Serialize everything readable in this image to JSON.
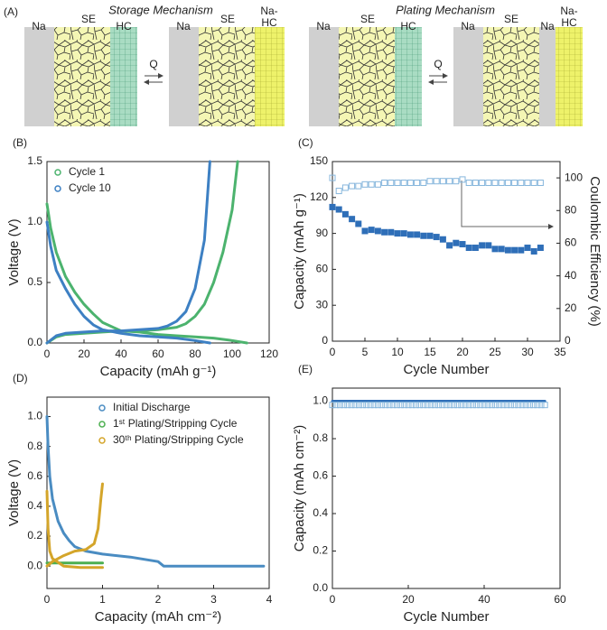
{
  "schematic": {
    "panel_label": "(A)",
    "mechanisms": [
      {
        "title": "Storage Mechanism",
        "arrow_label": "Q",
        "left": [
          "Na",
          "SE",
          "HC"
        ],
        "right": [
          "Na",
          "SE",
          "Na-HC"
        ]
      },
      {
        "title": "Plating Mechanism",
        "arrow_label": "Q",
        "left": [
          "Na",
          "SE",
          "HC"
        ],
        "right": [
          "Na",
          "SE",
          "Na",
          "Na-HC"
        ]
      }
    ]
  },
  "chart_data": [
    {
      "type": "line",
      "panel_label": "(B)",
      "x_label": "Capacity (mAh g⁻¹)",
      "y_label": "Voltage (V)",
      "xlim": [
        0,
        120
      ],
      "xticks": [
        0,
        20,
        40,
        60,
        80,
        100,
        120
      ],
      "ylim": [
        0,
        1.5
      ],
      "yticks": [
        {
          "value": 0,
          "label": "0.0"
        },
        0.5,
        {
          "value": 1,
          "label": "1.0"
        },
        1.5
      ],
      "legend": "upper left",
      "series": [
        {
          "name": "Cycle 1",
          "color": "#4cb36e",
          "x": [
            0,
            2,
            5,
            10,
            15,
            20,
            25,
            30,
            40,
            50,
            60,
            70,
            80,
            90,
            100,
            108,
            null,
            0,
            5,
            10,
            20,
            30,
            40,
            50,
            60,
            70,
            75,
            80,
            85,
            90,
            95,
            100,
            103
          ],
          "values": [
            1.15,
            0.95,
            0.75,
            0.55,
            0.42,
            0.32,
            0.24,
            0.17,
            0.1,
            0.09,
            0.07,
            0.06,
            0.05,
            0.04,
            0.02,
            0,
            null,
            0,
            0.05,
            0.07,
            0.08,
            0.09,
            0.1,
            0.1,
            0.11,
            0.13,
            0.16,
            0.22,
            0.32,
            0.5,
            0.75,
            1.1,
            1.5
          ]
        },
        {
          "name": "Cycle 10",
          "color": "#3d80c3",
          "x": [
            0,
            2,
            5,
            10,
            15,
            20,
            25,
            30,
            40,
            50,
            60,
            70,
            80,
            88,
            null,
            0,
            5,
            10,
            20,
            30,
            40,
            50,
            60,
            65,
            70,
            75,
            80,
            85,
            88
          ],
          "values": [
            1.0,
            0.8,
            0.6,
            0.45,
            0.32,
            0.22,
            0.15,
            0.11,
            0.08,
            0.06,
            0.05,
            0.04,
            0.02,
            0,
            null,
            0,
            0.06,
            0.08,
            0.09,
            0.1,
            0.1,
            0.11,
            0.12,
            0.14,
            0.18,
            0.26,
            0.45,
            0.85,
            1.5
          ]
        }
      ]
    },
    {
      "type": "scatter",
      "panel_label": "(C)",
      "x_label": "Cycle Number",
      "y_label": "Capacity (mAh g⁻¹)",
      "y2_label": "Coulombic Efficiency (%)",
      "xlim": [
        0,
        35
      ],
      "xticks": [
        0,
        5,
        10,
        15,
        20,
        25,
        30,
        35
      ],
      "ylim": [
        0,
        150
      ],
      "yticks": [
        0,
        30,
        60,
        90,
        120,
        150
      ],
      "y2lim": [
        0,
        110
      ],
      "y2ticks": [
        0,
        20,
        40,
        60,
        80,
        100
      ],
      "x": [
        0,
        1,
        2,
        3,
        4,
        5,
        6,
        7,
        8,
        9,
        10,
        11,
        12,
        13,
        14,
        15,
        16,
        17,
        18,
        19,
        20,
        21,
        22,
        23,
        24,
        25,
        26,
        27,
        28,
        29,
        30,
        31,
        32
      ],
      "series": [
        {
          "color": "#2f6fb8",
          "marker": "square-filled",
          "values": [
            112,
            110,
            106,
            102,
            98,
            92,
            93,
            92,
            91,
            91,
            90,
            90,
            89,
            89,
            88,
            88,
            87,
            85,
            80,
            82,
            81,
            78,
            78,
            80,
            80,
            77,
            77,
            76,
            76,
            76,
            78,
            75,
            78
          ]
        },
        {
          "color": "#86b6dc",
          "marker": "square-open",
          "axis": "y2",
          "values": [
            100,
            92,
            94,
            95,
            95,
            96,
            96,
            96,
            97,
            97,
            97,
            97,
            97,
            97,
            97,
            98,
            98,
            98,
            98,
            98,
            99,
            97,
            97,
            97,
            97,
            97,
            97,
            97,
            97,
            97,
            97,
            97,
            97
          ]
        }
      ]
    },
    {
      "type": "line",
      "panel_label": "(D)",
      "x_label": "Capacity (mAh cm⁻²)",
      "y_label": "Voltage (V)",
      "xlim": [
        0,
        4
      ],
      "xticks": [
        0,
        1,
        2,
        3,
        4
      ],
      "ylim": [
        -0.15,
        1.13
      ],
      "yticks": [
        {
          "value": 0,
          "label": "0.0"
        },
        0.2,
        0.4,
        0.6,
        0.8,
        {
          "value": 1,
          "label": "1.0"
        }
      ],
      "legend": "upper right",
      "series": [
        {
          "name": "Initial Discharge",
          "color": "#4a8cc2",
          "x": [
            0,
            0.02,
            0.05,
            0.1,
            0.2,
            0.3,
            0.4,
            0.5,
            0.7,
            1.0,
            1.5,
            2.0,
            2.1,
            2.5,
            3,
            3.5,
            3.9
          ],
          "values": [
            1.0,
            0.8,
            0.6,
            0.45,
            0.3,
            0.22,
            0.17,
            0.13,
            0.1,
            0.08,
            0.06,
            0.03,
            0,
            0,
            0,
            0,
            0
          ]
        },
        {
          "name": "1ˢᵗ Plating/Stripping Cycle",
          "color": "#4caf50",
          "x": [
            0,
            0.2,
            0.4,
            0.6,
            0.8,
            1.0
          ],
          "values": [
            0.02,
            0.02,
            0.02,
            0.02,
            0.02,
            0.02
          ]
        },
        {
          "name": "30ᵗʰ Plating/Stripping Cycle",
          "color": "#d4a52a",
          "x": [
            0,
            0.02,
            0.05,
            0.1,
            0.3,
            0.6,
            1.0,
            null,
            0,
            0.1,
            0.3,
            0.5,
            0.7,
            0.85,
            0.92,
            0.97,
            1.0
          ],
          "values": [
            0.5,
            0.25,
            0.1,
            0.05,
            0,
            -0.01,
            -0.01,
            null,
            0,
            0.03,
            0.07,
            0.1,
            0.11,
            0.15,
            0.25,
            0.45,
            0.55
          ]
        }
      ]
    },
    {
      "type": "scatter",
      "panel_label": "(E)",
      "x_label": "Cycle Number",
      "y_label": "Capacity (mAh cm⁻²)",
      "xlim": [
        0,
        60
      ],
      "xticks": [
        0,
        20,
        40,
        60
      ],
      "ylim": [
        0,
        1.07
      ],
      "yticks": [
        {
          "value": 0,
          "label": "0.0"
        },
        0.2,
        0.4,
        0.6,
        0.8,
        {
          "value": 1,
          "label": "1.0"
        }
      ],
      "series": [
        {
          "color": "#2f6fb8",
          "marker": "line",
          "x": [
            0,
            56
          ],
          "values": [
            1,
            1
          ]
        },
        {
          "color": "#86b6dc",
          "marker": "square-open",
          "x": [
            0,
            1,
            2,
            3,
            4,
            5,
            6,
            7,
            8,
            9,
            10,
            11,
            12,
            13,
            14,
            15,
            16,
            17,
            18,
            19,
            20,
            21,
            22,
            23,
            24,
            25,
            26,
            27,
            28,
            29,
            30,
            31,
            32,
            33,
            34,
            35,
            36,
            37,
            38,
            39,
            40,
            41,
            42,
            43,
            44,
            45,
            46,
            47,
            48,
            49,
            50,
            51,
            52,
            53,
            54,
            55,
            56
          ],
          "values": [
            0.98,
            0.98,
            0.98,
            0.98,
            0.98,
            0.98,
            0.98,
            0.98,
            0.98,
            0.98,
            0.98,
            0.98,
            0.98,
            0.98,
            0.98,
            0.98,
            0.98,
            0.98,
            0.98,
            0.98,
            0.98,
            0.98,
            0.98,
            0.98,
            0.98,
            0.98,
            0.98,
            0.98,
            0.98,
            0.98,
            0.98,
            0.98,
            0.98,
            0.98,
            0.98,
            0.98,
            0.98,
            0.98,
            0.98,
            0.98,
            0.98,
            0.98,
            0.98,
            0.98,
            0.98,
            0.98,
            0.98,
            0.98,
            0.98,
            0.98,
            0.98,
            0.98,
            0.98,
            0.98,
            0.98,
            0.98,
            0.98
          ]
        }
      ]
    }
  ]
}
